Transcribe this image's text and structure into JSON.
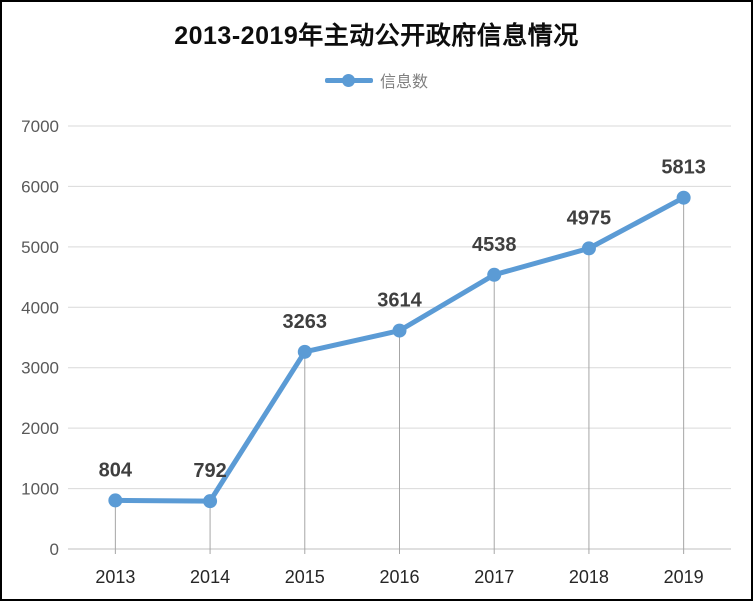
{
  "frame": {
    "background": "#ffffff",
    "border_color": "#000000"
  },
  "chart_data": {
    "type": "line",
    "title": "2013-2019年主动公开政府信息情况",
    "categories": [
      "2013",
      "2014",
      "2015",
      "2016",
      "2017",
      "2018",
      "2019"
    ],
    "series": [
      {
        "name": "信息数",
        "values": [
          804,
          792,
          3263,
          3614,
          4538,
          4975,
          5813
        ]
      }
    ],
    "data_labels": [
      "804",
      "792",
      "3263",
      "3614",
      "4538",
      "4975",
      "5813"
    ],
    "ylim": [
      0,
      7000
    ],
    "ytick_step": 1000,
    "yticks": [
      0,
      1000,
      2000,
      3000,
      4000,
      5000,
      6000,
      7000
    ],
    "grid": true,
    "drop_lines": true,
    "legend_position": "top",
    "xlabel": "",
    "ylabel": "",
    "colors": {
      "line": "#5b9bd5",
      "marker": "#5b9bd5",
      "drop_line": "#a6a6a6",
      "gridline": "#d9d9d9",
      "axis_line": "#bfbfbf",
      "tick_mark": "#a6a6a6",
      "data_label": "#3f3f3f",
      "y_tick_label": "#595959",
      "x_tick_label": "#262626",
      "title": "#0d0d0d",
      "legend_text": "#7f7f7f"
    }
  }
}
